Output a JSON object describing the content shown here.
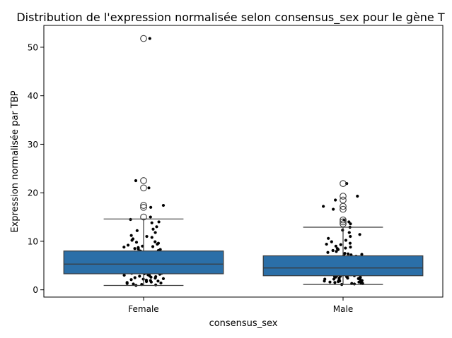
{
  "chart_data": {
    "type": "box",
    "title": "Distribution de l'expression normalisée selon consensus_sex pour le gène T",
    "xlabel": "consensus_sex",
    "ylabel": "Expression normalisée par TBP",
    "categories": [
      "Female",
      "Male"
    ],
    "ylim": [
      -1.5,
      54.5
    ],
    "yticks": [
      0,
      10,
      20,
      30,
      40,
      50
    ],
    "grid": false,
    "box_color": "#2b6fa8",
    "edge_color": "#3a3a3a",
    "point_color": "#000000",
    "boxes": [
      {
        "name": "Female",
        "whisker_low": 0.9,
        "q1": 3.3,
        "median": 5.3,
        "q3": 8.0,
        "whisker_high": 14.6,
        "outliers": [
          51.8,
          22.5,
          21.0,
          17.4,
          17.0,
          15.0
        ]
      },
      {
        "name": "Male",
        "whisker_low": 1.1,
        "q1": 2.9,
        "median": 4.5,
        "q3": 7.0,
        "whisker_high": 12.9,
        "outliers": [
          21.9,
          19.3,
          18.5,
          17.2,
          16.6,
          14.4,
          14.0,
          13.6
        ]
      }
    ],
    "strip_points": [
      {
        "category": "Female",
        "values": [
          51.8,
          22.5,
          21.0,
          17.4,
          17.0,
          15.0,
          14.5,
          14.0,
          13.8,
          13.0,
          12.5,
          12.2,
          11.8,
          11.2,
          11.0,
          10.5,
          10.2,
          9.9,
          9.6,
          9.4,
          9.2,
          9.0,
          8.9,
          8.7,
          8.5,
          8.4,
          8.3,
          8.1,
          8.0,
          7.9,
          7.8,
          7.7,
          7.5,
          7.4,
          7.3,
          7.2,
          7.1,
          7.0,
          6.9,
          6.8,
          6.7,
          6.6,
          6.5,
          6.4,
          6.3,
          6.2,
          6.1,
          6.0,
          5.9,
          5.8,
          5.8,
          5.7,
          5.6,
          5.5,
          5.5,
          5.4,
          5.3,
          5.3,
          5.2,
          5.1,
          5.0,
          5.0,
          4.9,
          4.8,
          4.7,
          4.7,
          4.6,
          4.5,
          4.4,
          4.4,
          4.3,
          4.2,
          4.1,
          4.0,
          4.0,
          3.9,
          3.8,
          3.7,
          3.7,
          3.6,
          3.5,
          3.4,
          3.4,
          3.3,
          3.2,
          3.1,
          3.0,
          3.0,
          2.9,
          2.8,
          2.7,
          2.6,
          2.5,
          2.4,
          2.3,
          2.2,
          2.1,
          2.0,
          1.9,
          1.8,
          1.7,
          1.6,
          1.5,
          1.4,
          1.3,
          1.2,
          1.1,
          1.0,
          0.9,
          6.3,
          5.9,
          4.6,
          3.9,
          7.6,
          8.8,
          9.8,
          10.8,
          6.6,
          5.1,
          4.3
        ]
      },
      {
        "category": "Male",
        "values": [
          21.9,
          19.3,
          18.5,
          17.2,
          16.6,
          14.4,
          14.0,
          13.6,
          12.9,
          12.3,
          11.8,
          11.4,
          11.0,
          10.6,
          10.2,
          9.9,
          9.6,
          9.3,
          9.0,
          8.8,
          8.5,
          8.3,
          8.1,
          7.9,
          7.7,
          7.5,
          7.3,
          7.2,
          7.0,
          6.9,
          6.8,
          6.6,
          6.5,
          6.4,
          6.3,
          6.2,
          6.1,
          6.0,
          5.9,
          5.8,
          5.7,
          5.6,
          5.5,
          5.4,
          5.3,
          5.2,
          5.1,
          5.0,
          4.9,
          4.9,
          4.8,
          4.7,
          4.6,
          4.6,
          4.5,
          4.5,
          4.4,
          4.4,
          4.3,
          4.2,
          4.2,
          4.1,
          4.0,
          4.0,
          3.9,
          3.9,
          3.8,
          3.7,
          3.7,
          3.6,
          3.6,
          3.5,
          3.4,
          3.4,
          3.3,
          3.3,
          3.2,
          3.1,
          3.1,
          3.0,
          3.0,
          2.9,
          2.8,
          2.8,
          2.7,
          2.6,
          2.6,
          2.5,
          2.4,
          2.4,
          2.3,
          2.2,
          2.2,
          2.1,
          2.0,
          2.0,
          1.9,
          1.8,
          1.8,
          1.7,
          1.6,
          1.6,
          1.5,
          1.4,
          1.3,
          1.3,
          1.2,
          1.1,
          5.6,
          4.7,
          3.8,
          2.9,
          6.7,
          7.4,
          8.6,
          9.4,
          4.1,
          3.2,
          5.3,
          6.0,
          2.7,
          3.5,
          4.8,
          1.9
        ]
      }
    ]
  }
}
